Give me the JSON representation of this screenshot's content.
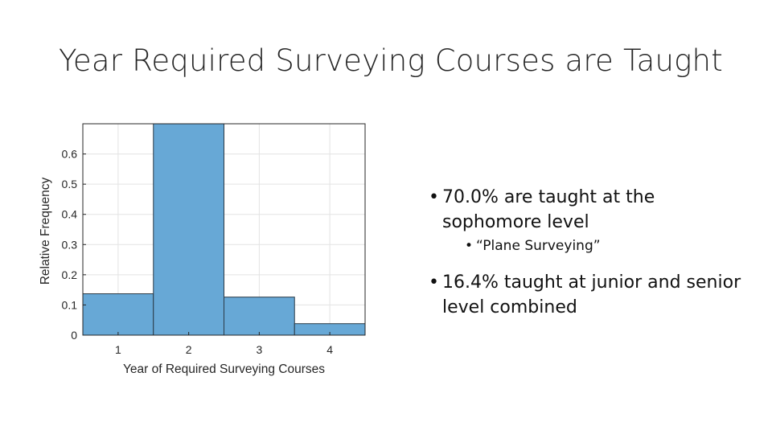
{
  "slide": {
    "title": "Year Required Surveying Courses are Taught"
  },
  "bullets": [
    {
      "text": "70.0% are taught at the sophomore level",
      "sub": "“Plane Surveying”"
    },
    {
      "text": "16.4% taught at junior and senior level combined"
    }
  ],
  "colors": {
    "bar_fill": "#67a8d6",
    "bar_edge": "#2b3a46",
    "grid": "#e3e3e3",
    "axis": "#262626",
    "text": "#262626"
  },
  "chart_data": {
    "type": "bar",
    "categories": [
      "1",
      "2",
      "3",
      "4"
    ],
    "values": [
      0.137,
      0.7,
      0.126,
      0.038
    ],
    "title": "",
    "xlabel": "Year of Required Surveying Courses",
    "ylabel": "Relative Frequency",
    "ylim": [
      0,
      0.7
    ],
    "yticks": [
      "0",
      "0.1",
      "0.2",
      "0.3",
      "0.4",
      "0.5",
      "0.6"
    ],
    "grid": true,
    "legend": "none"
  }
}
